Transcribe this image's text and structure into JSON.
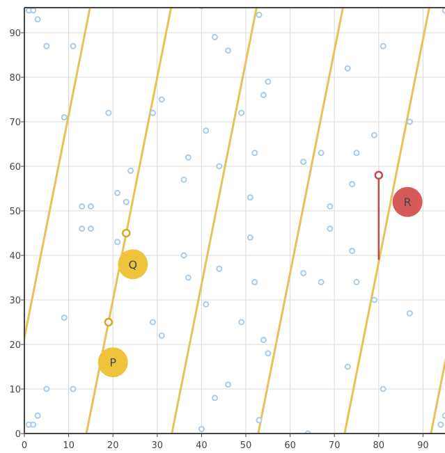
{
  "chart_data": {
    "type": "scatter",
    "title": "",
    "xlabel": "",
    "ylabel": "",
    "xlim": [
      0,
      95
    ],
    "ylim": [
      0,
      95
    ],
    "grid": true,
    "x_ticks": [
      0,
      10,
      20,
      30,
      40,
      50,
      60,
      70,
      80,
      90
    ],
    "y_ticks": [
      0,
      10,
      20,
      30,
      40,
      50,
      60,
      70,
      80,
      90
    ],
    "x_tick_labels": [
      "0",
      "10",
      "20",
      "30",
      "40",
      "50",
      "60",
      "70",
      "80",
      "90"
    ],
    "y_tick_labels": [
      "0",
      "10",
      "20",
      "30",
      "40",
      "50",
      "60",
      "70",
      "80",
      "90"
    ],
    "points": [
      {
        "x": 1,
        "y": 95
      },
      {
        "x": 2,
        "y": 95
      },
      {
        "x": 3,
        "y": 93
      },
      {
        "x": 5,
        "y": 87
      },
      {
        "x": 11,
        "y": 87
      },
      {
        "x": 9,
        "y": 71
      },
      {
        "x": 19,
        "y": 72
      },
      {
        "x": 29,
        "y": 72
      },
      {
        "x": 31,
        "y": 75
      },
      {
        "x": 40,
        "y": 96
      },
      {
        "x": 43,
        "y": 89
      },
      {
        "x": 46,
        "y": 86
      },
      {
        "x": 53,
        "y": 94
      },
      {
        "x": 55,
        "y": 79
      },
      {
        "x": 54,
        "y": 76
      },
      {
        "x": 49,
        "y": 72
      },
      {
        "x": 41,
        "y": 68
      },
      {
        "x": 37,
        "y": 62
      },
      {
        "x": 44,
        "y": 60
      },
      {
        "x": 52,
        "y": 63
      },
      {
        "x": 36,
        "y": 57
      },
      {
        "x": 24,
        "y": 59
      },
      {
        "x": 21,
        "y": 54
      },
      {
        "x": 23,
        "y": 52
      },
      {
        "x": 13,
        "y": 51
      },
      {
        "x": 15,
        "y": 51
      },
      {
        "x": 13,
        "y": 46
      },
      {
        "x": 15,
        "y": 46
      },
      {
        "x": 21,
        "y": 43
      },
      {
        "x": 51,
        "y": 53
      },
      {
        "x": 51,
        "y": 44
      },
      {
        "x": 36,
        "y": 40
      },
      {
        "x": 37,
        "y": 35
      },
      {
        "x": 44,
        "y": 37
      },
      {
        "x": 52,
        "y": 34
      },
      {
        "x": 41,
        "y": 29
      },
      {
        "x": 49,
        "y": 25
      },
      {
        "x": 54,
        "y": 21
      },
      {
        "x": 55,
        "y": 18
      },
      {
        "x": 29,
        "y": 25
      },
      {
        "x": 31,
        "y": 22
      },
      {
        "x": 9,
        "y": 26
      },
      {
        "x": 46,
        "y": 11
      },
      {
        "x": 43,
        "y": 8
      },
      {
        "x": 40,
        "y": 1
      },
      {
        "x": 53,
        "y": 3
      },
      {
        "x": 64,
        "y": 0
      },
      {
        "x": 5,
        "y": 10
      },
      {
        "x": 11,
        "y": 10
      },
      {
        "x": 3,
        "y": 4
      },
      {
        "x": 1,
        "y": 2
      },
      {
        "x": 2,
        "y": 2
      },
      {
        "x": 73,
        "y": 82
      },
      {
        "x": 81,
        "y": 87
      },
      {
        "x": 63,
        "y": 61
      },
      {
        "x": 67,
        "y": 63
      },
      {
        "x": 74,
        "y": 56
      },
      {
        "x": 75,
        "y": 63
      },
      {
        "x": 79,
        "y": 67
      },
      {
        "x": 87,
        "y": 70
      },
      {
        "x": 69,
        "y": 51
      },
      {
        "x": 69,
        "y": 46
      },
      {
        "x": 74,
        "y": 41
      },
      {
        "x": 63,
        "y": 36
      },
      {
        "x": 67,
        "y": 34
      },
      {
        "x": 75,
        "y": 34
      },
      {
        "x": 79,
        "y": 30
      },
      {
        "x": 87,
        "y": 27
      },
      {
        "x": 73,
        "y": 15
      },
      {
        "x": 81,
        "y": 10
      },
      {
        "x": 95,
        "y": 95
      },
      {
        "x": 96,
        "y": 93
      },
      {
        "x": 95,
        "y": 4
      },
      {
        "x": 94,
        "y": 2
      }
    ],
    "diagonal_lines": [
      {
        "x_at_y0": -4.3
      },
      {
        "x_at_y0": 14.0
      },
      {
        "x_at_y0": 33.3
      },
      {
        "x_at_y0": 52.8
      },
      {
        "x_at_y0": 72.3
      },
      {
        "x_at_y0": 91.8
      }
    ],
    "diagonal_line_slope_dx_per_dy": 0.2,
    "markers": [
      {
        "label": "P",
        "x": 20,
        "y": 16,
        "color": "#f0c33c"
      },
      {
        "label": "Q",
        "x": 24.5,
        "y": 38,
        "color": "#f0c33c"
      },
      {
        "label": "R",
        "x": 86.5,
        "y": 52,
        "color": "#d65a5a"
      }
    ],
    "hollow_points": [
      {
        "x": 23,
        "y": 45,
        "color": "#d6a820"
      },
      {
        "x": 19,
        "y": 25,
        "color": "#d6a820"
      },
      {
        "x": 80,
        "y": 58,
        "color": "#c0474d"
      }
    ],
    "segments": [
      {
        "x1": 80,
        "y1": 58,
        "x2": 80,
        "y2": 39,
        "color": "#c0474d"
      }
    ],
    "colors": {
      "point_stroke": "#a9cbe7",
      "diagonal": "#e7c15a",
      "grid": "#d9d9d9",
      "axis": "#444444"
    }
  }
}
